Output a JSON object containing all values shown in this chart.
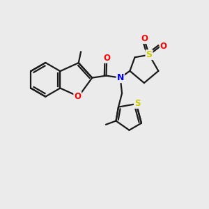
{
  "bg_color": "#ebebeb",
  "bond_color": "#1a1a1a",
  "bond_width": 1.6,
  "atom_colors": {
    "O": "#ff0000",
    "N": "#0000ff",
    "S": "#cccc00",
    "C": "#1a1a1a"
  },
  "fig_size": [
    3.0,
    3.0
  ],
  "dpi": 100
}
